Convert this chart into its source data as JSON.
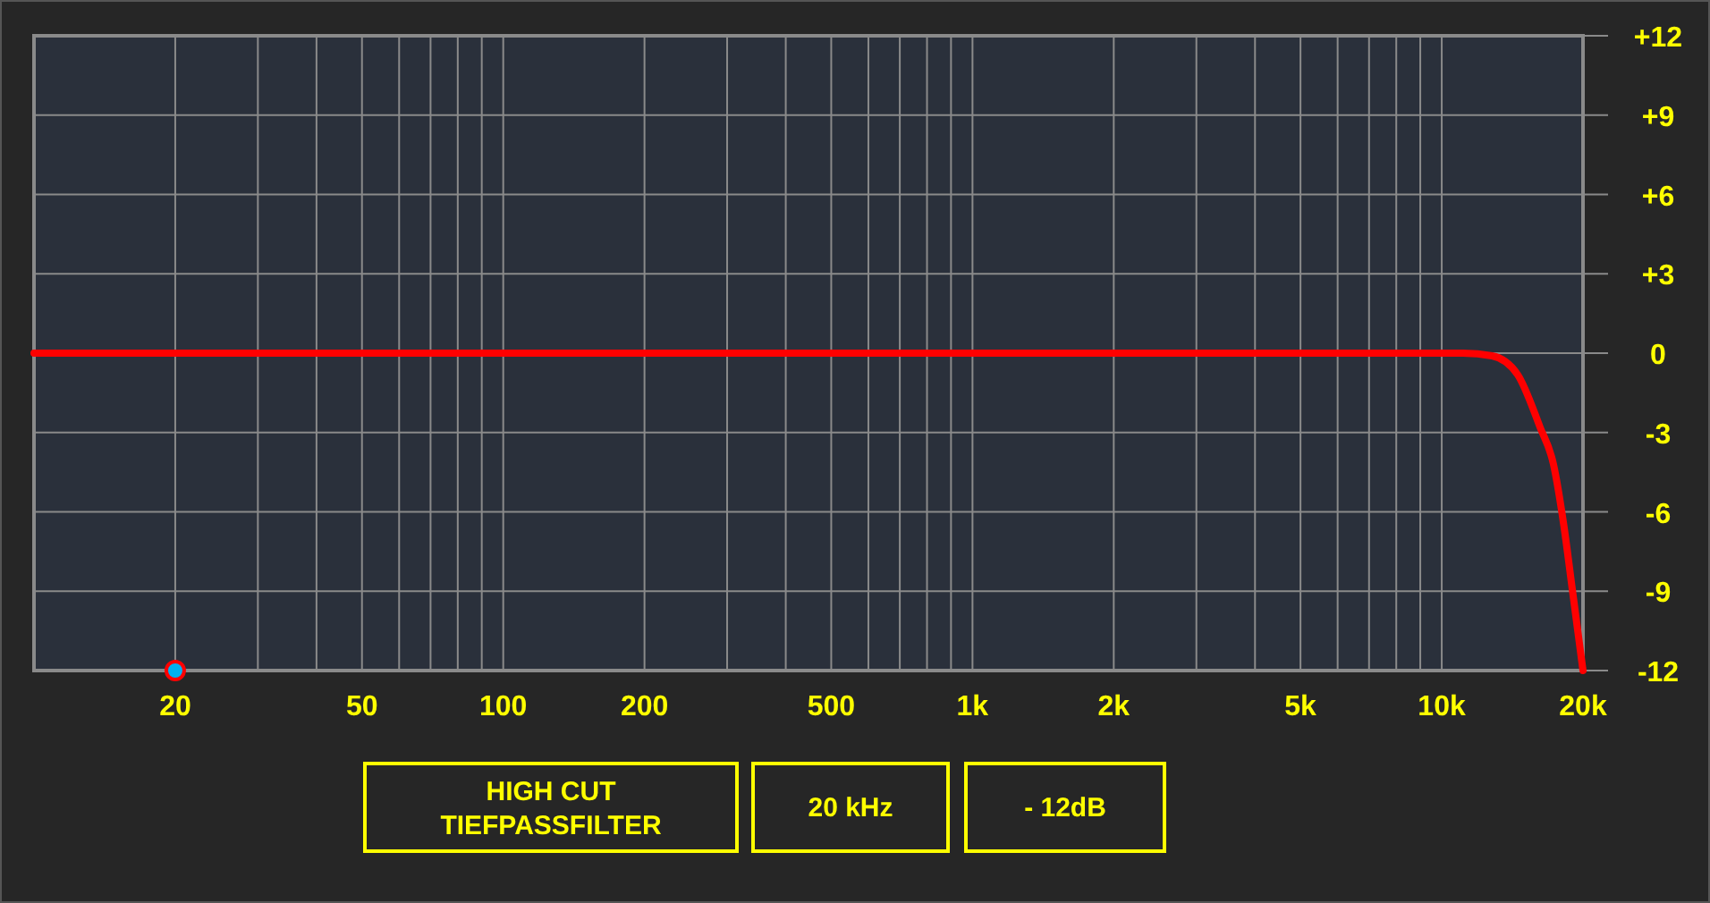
{
  "chart_data": {
    "type": "line",
    "log": "x",
    "grid": true,
    "xlim": [
      10,
      20000
    ],
    "ylim": [
      -12,
      12
    ],
    "xticks": [
      20,
      {
        "value": 30,
        "label": null
      },
      {
        "value": 40,
        "label": null
      },
      50,
      {
        "value": 60,
        "label": null
      },
      {
        "value": 70,
        "label": null
      },
      {
        "value": 80,
        "label": null
      },
      {
        "value": 90,
        "label": null
      },
      100,
      200,
      {
        "value": 300,
        "label": null
      },
      {
        "value": 400,
        "label": null
      },
      500,
      {
        "value": 600,
        "label": null
      },
      {
        "value": 700,
        "label": null
      },
      {
        "value": 800,
        "label": null
      },
      {
        "value": 900,
        "label": null
      },
      {
        "value": 1000,
        "label": "1k"
      },
      {
        "value": 2000,
        "label": "2k"
      },
      {
        "value": 3000,
        "label": null
      },
      {
        "value": 4000,
        "label": null
      },
      {
        "value": 5000,
        "label": "5k"
      },
      {
        "value": 6000,
        "label": null
      },
      {
        "value": 7000,
        "label": null
      },
      {
        "value": 8000,
        "label": null
      },
      {
        "value": 9000,
        "label": null
      },
      {
        "value": 10000,
        "label": "10k"
      },
      {
        "value": 20000,
        "label": "20k"
      }
    ],
    "yticks": [
      {
        "value": 12,
        "label": "+12"
      },
      {
        "value": 9,
        "label": "+9"
      },
      {
        "value": 6,
        "label": "+6"
      },
      {
        "value": 3,
        "label": "+3"
      },
      0,
      -3,
      -6,
      -9,
      -12
    ],
    "annotations": [
      "HIGH CUT\nTIEFPASSFILTER",
      "20 kHz",
      "- 12dB"
    ],
    "series": [
      {
        "color": "#ff0000",
        "line_style": "solid",
        "marker": "none",
        "x": [
          10,
          100,
          1000,
          10000,
          11100,
          12800,
          14500,
          16200,
          17300,
          18200,
          19000,
          20000
        ],
        "values": [
          0,
          0,
          0,
          0,
          0,
          -0.1,
          -0.8,
          -2.8,
          -4.2,
          -6.5,
          -9,
          -12
        ]
      },
      {
        "type": "scatter",
        "color": "#00b0f0",
        "marker": "circle",
        "x": [
          20
        ],
        "values": [
          -12
        ]
      }
    ]
  }
}
